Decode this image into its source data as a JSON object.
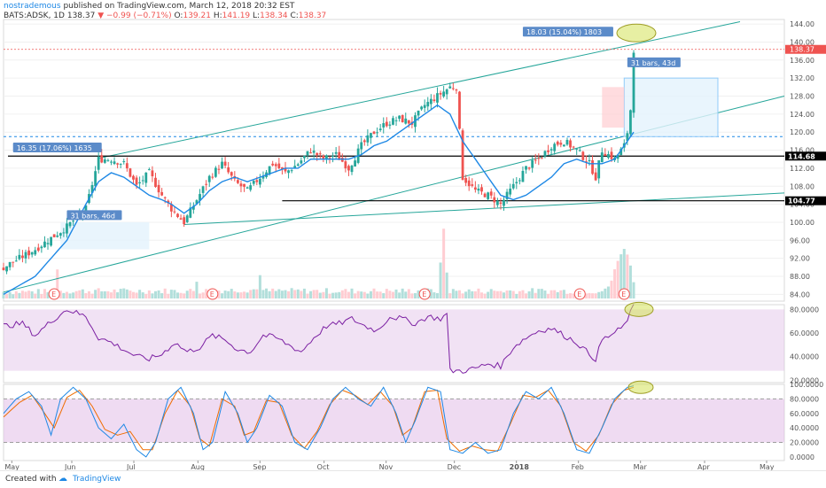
{
  "header": {
    "author": "nostrademous",
    "published": "published on TradingView.com, March 12, 2018 20:32 EST",
    "symbol": "BATS:ADSK, 1D",
    "price": "138.37",
    "change": "−0.99 (−0.71%)",
    "o_label": "O:",
    "o": "139.21",
    "h_label": "H:",
    "h": "141.19",
    "l_label": "L:",
    "l": "138.34",
    "c_label": "C:",
    "c": "138.37"
  },
  "footer": {
    "created_with": "Created with",
    "brand": "TradingView"
  },
  "colors": {
    "up": "#26a69a",
    "down": "#ef5350",
    "ma": "#1e88e5",
    "channel": "#26a69a",
    "rsi": "#7b1fa2",
    "stoch_k": "#1e88e5",
    "stoch_d": "#ef6c00",
    "band": "#e1bee7"
  },
  "chart_data": [
    {
      "type": "candlestick",
      "name": "price",
      "y_axis_ticks": [
        "144.00",
        "140.00",
        "136.00",
        "132.00",
        "128.00",
        "124.00",
        "120.00",
        "116.00",
        "112.00",
        "108.00",
        "104.00",
        "100.00",
        "96.00",
        "92.00",
        "88.00",
        "84.00"
      ],
      "ylim": [
        82.5,
        145
      ],
      "last_price": "138.37",
      "levels": [
        {
          "value": 114.68,
          "label": "114.68"
        },
        {
          "value": 104.77,
          "label": "104.77"
        }
      ],
      "annotations": [
        {
          "text": "16.35 (17.06%) 1635"
        },
        {
          "text": "31 bars, 46d"
        },
        {
          "text": "18.03 (15.04%) 1803"
        },
        {
          "text": "31 bars, 43d"
        }
      ],
      "x_axis_ticks": [
        "May",
        "Jun",
        "Jul",
        "Aug",
        "Sep",
        "Oct",
        "Nov",
        "Dec",
        "2018",
        "Feb",
        "Mar",
        "Apr",
        "May"
      ],
      "earnings_marker": "E",
      "earnings_count": 5,
      "close_anchors": [
        [
          0,
          90
        ],
        [
          10,
          94
        ],
        [
          20,
          99
        ],
        [
          26,
          103
        ],
        [
          30,
          114
        ],
        [
          34,
          114
        ],
        [
          38,
          113
        ],
        [
          42,
          108
        ],
        [
          46,
          111
        ],
        [
          50,
          106
        ],
        [
          53,
          103
        ],
        [
          57,
          100
        ],
        [
          61,
          105
        ],
        [
          65,
          110
        ],
        [
          69,
          113
        ],
        [
          73,
          109
        ],
        [
          77,
          107
        ],
        [
          81,
          110
        ],
        [
          85,
          113
        ],
        [
          89,
          111
        ],
        [
          93,
          113
        ],
        [
          97,
          116
        ],
        [
          101,
          114
        ],
        [
          105,
          115
        ],
        [
          109,
          112
        ],
        [
          113,
          117
        ],
        [
          117,
          120
        ],
        [
          121,
          122
        ],
        [
          125,
          123
        ],
        [
          129,
          122
        ],
        [
          133,
          126
        ],
        [
          137,
          128
        ],
        [
          141,
          130
        ],
        [
          143,
          130
        ],
        [
          145,
          110
        ],
        [
          149,
          107
        ],
        [
          153,
          106
        ],
        [
          157,
          104
        ],
        [
          161,
          108
        ],
        [
          165,
          112
        ],
        [
          169,
          114
        ],
        [
          173,
          117
        ],
        [
          177,
          118
        ],
        [
          181,
          116
        ],
        [
          185,
          113
        ],
        [
          187,
          110
        ],
        [
          189,
          116
        ],
        [
          193,
          114
        ],
        [
          196,
          117
        ],
        [
          197,
          120
        ],
        [
          198,
          125
        ],
        [
          199,
          138.4
        ]
      ],
      "ma_anchors": [
        [
          0,
          84
        ],
        [
          10,
          88
        ],
        [
          20,
          96
        ],
        [
          26,
          104
        ],
        [
          30,
          109
        ],
        [
          34,
          111
        ],
        [
          38,
          110
        ],
        [
          42,
          108
        ],
        [
          46,
          106
        ],
        [
          50,
          105
        ],
        [
          53,
          104
        ],
        [
          57,
          102
        ],
        [
          61,
          104
        ],
        [
          65,
          107
        ],
        [
          69,
          109
        ],
        [
          73,
          110
        ],
        [
          77,
          109
        ],
        [
          81,
          110
        ],
        [
          85,
          111
        ],
        [
          89,
          112
        ],
        [
          93,
          112
        ],
        [
          97,
          114
        ],
        [
          101,
          114
        ],
        [
          105,
          114
        ],
        [
          109,
          114
        ],
        [
          113,
          115
        ],
        [
          117,
          117
        ],
        [
          121,
          118
        ],
        [
          125,
          120
        ],
        [
          129,
          122
        ],
        [
          133,
          124
        ],
        [
          137,
          126
        ],
        [
          141,
          124
        ],
        [
          143,
          121
        ],
        [
          145,
          118
        ],
        [
          149,
          114
        ],
        [
          153,
          110
        ],
        [
          157,
          106
        ],
        [
          161,
          105
        ],
        [
          165,
          106
        ],
        [
          169,
          108
        ],
        [
          173,
          110
        ],
        [
          177,
          113
        ],
        [
          181,
          114
        ],
        [
          185,
          113
        ],
        [
          189,
          113
        ],
        [
          193,
          114
        ],
        [
          196,
          117
        ],
        [
          199,
          120
        ]
      ],
      "volume_anchors": [
        [
          0,
          0.05
        ],
        [
          16,
          0.05
        ],
        [
          17,
          0.35
        ],
        [
          18,
          0.06
        ],
        [
          60,
          0.06
        ],
        [
          61,
          0.2
        ],
        [
          62,
          0.06
        ],
        [
          80,
          0.08
        ],
        [
          81,
          0.3
        ],
        [
          82,
          0.06
        ],
        [
          137,
          0.06
        ],
        [
          138,
          0.4
        ],
        [
          139,
          0.9
        ],
        [
          140,
          0.3
        ],
        [
          141,
          0.06
        ],
        [
          190,
          0.06
        ],
        [
          192,
          0.2
        ],
        [
          194,
          0.45
        ],
        [
          196,
          0.65
        ],
        [
          197,
          0.55
        ],
        [
          199,
          0.2
        ]
      ]
    },
    {
      "type": "line",
      "name": "rsi",
      "y_axis_ticks": [
        "80.0000",
        "60.0000",
        "40.0000",
        "20.0000"
      ],
      "ylim": [
        18,
        84
      ],
      "anchors": [
        [
          0,
          66
        ],
        [
          6,
          68
        ],
        [
          10,
          58
        ],
        [
          16,
          72
        ],
        [
          20,
          80
        ],
        [
          26,
          74
        ],
        [
          30,
          56
        ],
        [
          34,
          52
        ],
        [
          38,
          46
        ],
        [
          42,
          40
        ],
        [
          46,
          38
        ],
        [
          50,
          42
        ],
        [
          54,
          52
        ],
        [
          58,
          44
        ],
        [
          62,
          48
        ],
        [
          66,
          58
        ],
        [
          70,
          54
        ],
        [
          74,
          46
        ],
        [
          78,
          44
        ],
        [
          82,
          58
        ],
        [
          86,
          56
        ],
        [
          90,
          50
        ],
        [
          94,
          44
        ],
        [
          98,
          56
        ],
        [
          102,
          66
        ],
        [
          106,
          68
        ],
        [
          110,
          72
        ],
        [
          114,
          66
        ],
        [
          118,
          62
        ],
        [
          122,
          74
        ],
        [
          126,
          72
        ],
        [
          130,
          68
        ],
        [
          134,
          74
        ],
        [
          138,
          72
        ],
        [
          140,
          76
        ],
        [
          141,
          28
        ],
        [
          145,
          28
        ],
        [
          149,
          30
        ],
        [
          153,
          34
        ],
        [
          157,
          32
        ],
        [
          161,
          48
        ],
        [
          165,
          56
        ],
        [
          169,
          62
        ],
        [
          173,
          64
        ],
        [
          177,
          58
        ],
        [
          181,
          52
        ],
        [
          185,
          42
        ],
        [
          187,
          38
        ],
        [
          189,
          54
        ],
        [
          193,
          60
        ],
        [
          196,
          66
        ],
        [
          197,
          72
        ],
        [
          199,
          82
        ]
      ]
    },
    {
      "type": "line",
      "name": "stoch",
      "y_axis_ticks": [
        "100.0000",
        "80.0000",
        "60.0000",
        "40.0000",
        "20.0000",
        "0.0000"
      ],
      "ylim": [
        -5,
        100
      ],
      "k_anchors": [
        [
          0,
          60
        ],
        [
          4,
          80
        ],
        [
          8,
          90
        ],
        [
          12,
          70
        ],
        [
          15,
          30
        ],
        [
          18,
          80
        ],
        [
          22,
          96
        ],
        [
          26,
          80
        ],
        [
          30,
          40
        ],
        [
          34,
          25
        ],
        [
          38,
          45
        ],
        [
          42,
          10
        ],
        [
          45,
          0
        ],
        [
          48,
          20
        ],
        [
          52,
          80
        ],
        [
          56,
          96
        ],
        [
          60,
          60
        ],
        [
          63,
          10
        ],
        [
          66,
          20
        ],
        [
          70,
          90
        ],
        [
          74,
          60
        ],
        [
          77,
          20
        ],
        [
          80,
          40
        ],
        [
          84,
          85
        ],
        [
          88,
          70
        ],
        [
          92,
          20
        ],
        [
          96,
          10
        ],
        [
          100,
          40
        ],
        [
          104,
          80
        ],
        [
          108,
          96
        ],
        [
          112,
          80
        ],
        [
          116,
          70
        ],
        [
          120,
          96
        ],
        [
          124,
          60
        ],
        [
          127,
          20
        ],
        [
          130,
          50
        ],
        [
          134,
          96
        ],
        [
          138,
          90
        ],
        [
          141,
          10
        ],
        [
          145,
          5
        ],
        [
          149,
          20
        ],
        [
          153,
          5
        ],
        [
          157,
          10
        ],
        [
          161,
          60
        ],
        [
          165,
          90
        ],
        [
          169,
          80
        ],
        [
          173,
          96
        ],
        [
          177,
          60
        ],
        [
          181,
          10
        ],
        [
          185,
          5
        ],
        [
          189,
          40
        ],
        [
          193,
          80
        ],
        [
          197,
          96
        ],
        [
          199,
          98
        ]
      ],
      "d_anchors": [
        [
          0,
          55
        ],
        [
          5,
          75
        ],
        [
          9,
          85
        ],
        [
          13,
          60
        ],
        [
          16,
          40
        ],
        [
          20,
          82
        ],
        [
          24,
          92
        ],
        [
          28,
          70
        ],
        [
          32,
          38
        ],
        [
          36,
          30
        ],
        [
          40,
          35
        ],
        [
          44,
          10
        ],
        [
          47,
          10
        ],
        [
          51,
          60
        ],
        [
          55,
          92
        ],
        [
          59,
          70
        ],
        [
          62,
          25
        ],
        [
          65,
          15
        ],
        [
          69,
          80
        ],
        [
          73,
          70
        ],
        [
          76,
          30
        ],
        [
          79,
          35
        ],
        [
          83,
          78
        ],
        [
          87,
          75
        ],
        [
          91,
          30
        ],
        [
          95,
          12
        ],
        [
          99,
          35
        ],
        [
          103,
          72
        ],
        [
          107,
          92
        ],
        [
          111,
          85
        ],
        [
          115,
          72
        ],
        [
          119,
          90
        ],
        [
          123,
          70
        ],
        [
          126,
          30
        ],
        [
          129,
          40
        ],
        [
          133,
          90
        ],
        [
          137,
          92
        ],
        [
          140,
          25
        ],
        [
          144,
          8
        ],
        [
          148,
          15
        ],
        [
          152,
          10
        ],
        [
          156,
          8
        ],
        [
          160,
          45
        ],
        [
          164,
          85
        ],
        [
          168,
          82
        ],
        [
          172,
          92
        ],
        [
          176,
          70
        ],
        [
          180,
          20
        ],
        [
          184,
          8
        ],
        [
          188,
          30
        ],
        [
          192,
          72
        ],
        [
          196,
          92
        ],
        [
          199,
          96
        ]
      ]
    }
  ]
}
